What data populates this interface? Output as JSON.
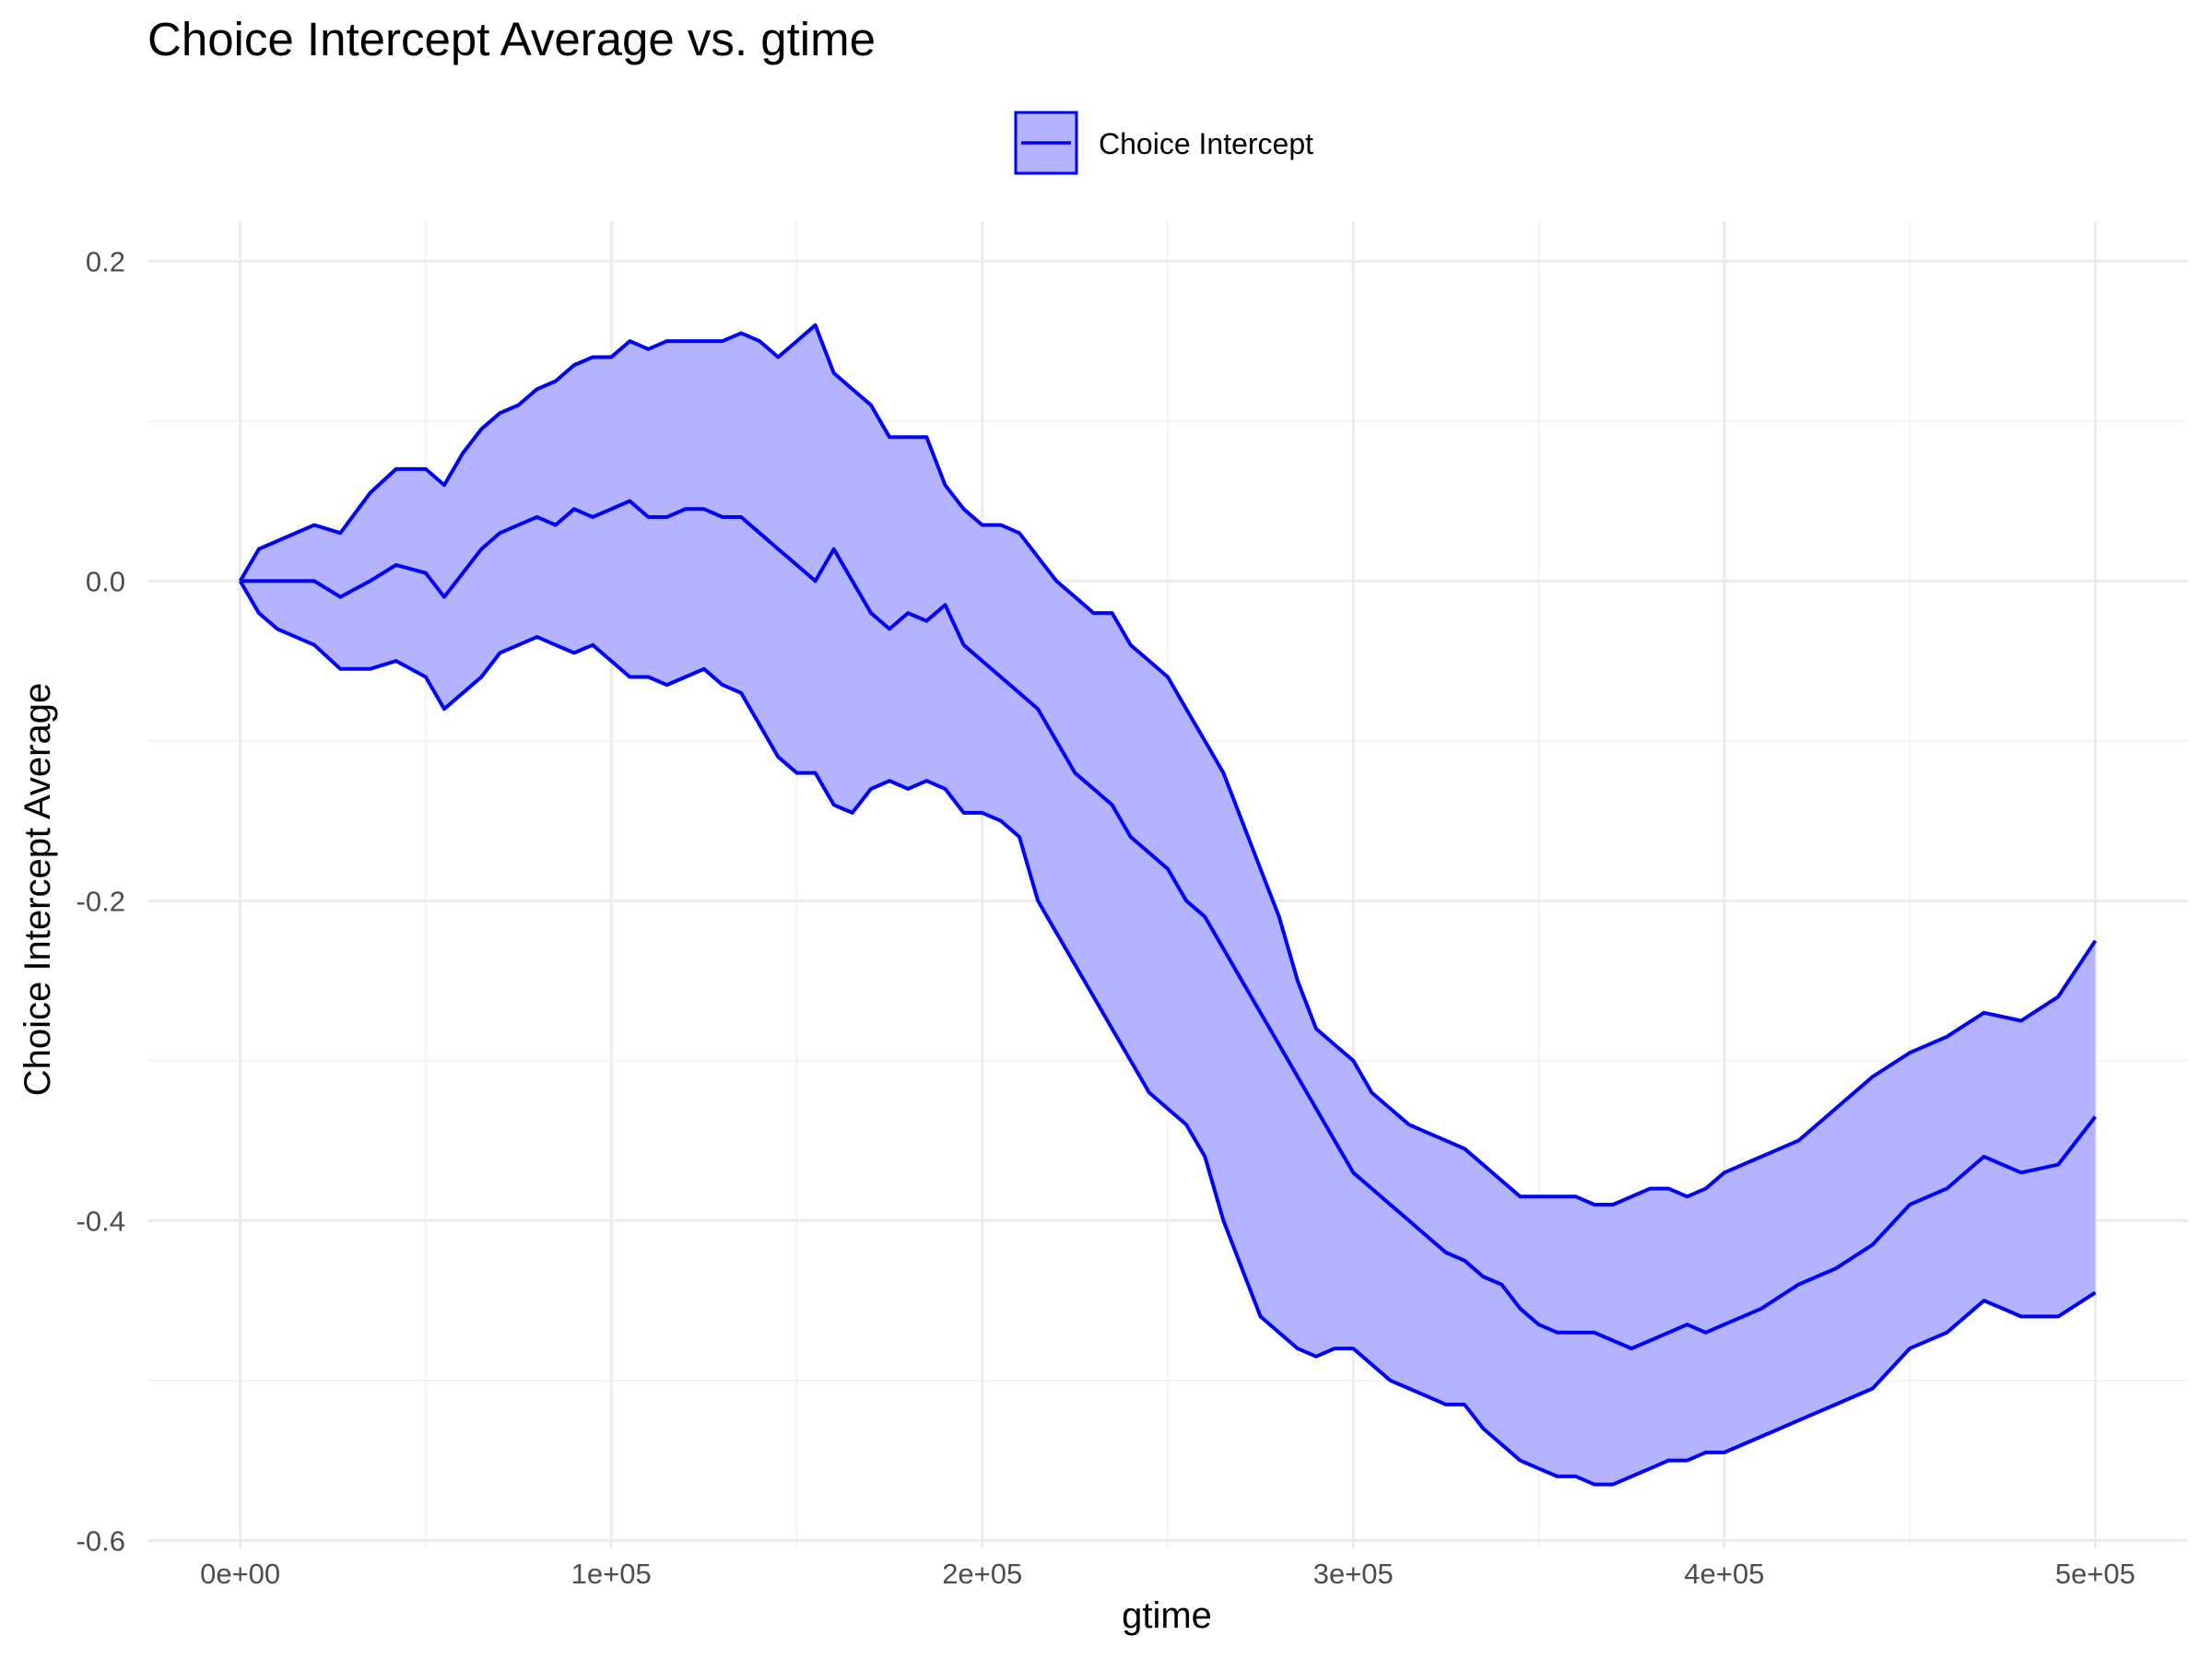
{
  "chart_data": {
    "type": "area",
    "title": "Choice Intercept Average vs. gtime",
    "xlabel": "gtime",
    "ylabel": "Choice Intercept Average",
    "xlim": [
      -25000,
      525000
    ],
    "ylim": [
      -0.605,
      0.225
    ],
    "x_ticks": [
      0,
      100000,
      200000,
      300000,
      400000,
      500000
    ],
    "x_tick_labels": [
      "0e+00",
      "1e+05",
      "2e+05",
      "3e+05",
      "4e+05",
      "5e+05"
    ],
    "y_ticks": [
      -0.6,
      -0.4,
      -0.2,
      0.0,
      0.2
    ],
    "y_tick_labels": [
      "-0.6",
      "-0.4",
      "-0.2",
      "0.0",
      "0.2"
    ],
    "grid": true,
    "legend": {
      "position": "top",
      "entries": [
        "Choice Intercept"
      ]
    },
    "colors": {
      "line": "#0000ff",
      "fill": "#b3b3ff"
    },
    "x": [
      0,
      5000,
      10000,
      20000,
      27000,
      35000,
      42000,
      50000,
      55000,
      60000,
      65000,
      70000,
      75000,
      80000,
      85000,
      90000,
      95000,
      100000,
      105000,
      110000,
      115000,
      120000,
      125000,
      130000,
      135000,
      140000,
      145000,
      150000,
      155000,
      160000,
      165000,
      170000,
      175000,
      180000,
      185000,
      190000,
      195000,
      200000,
      205000,
      210000,
      215000,
      220000,
      225000,
      230000,
      235000,
      240000,
      245000,
      250000,
      255000,
      260000,
      265000,
      270000,
      275000,
      280000,
      285000,
      290000,
      295000,
      300000,
      305000,
      310000,
      315000,
      320000,
      325000,
      330000,
      335000,
      340000,
      345000,
      350000,
      355000,
      360000,
      365000,
      370000,
      375000,
      380000,
      385000,
      390000,
      395000,
      400000,
      410000,
      420000,
      430000,
      440000,
      450000,
      460000,
      470000,
      480000,
      490000,
      500000
    ],
    "series": [
      {
        "name": "Choice Intercept",
        "values": [
          0.0,
          0.0,
          0.0,
          0.0,
          -0.01,
          0.0,
          0.01,
          0.005,
          -0.01,
          0.005,
          0.02,
          0.03,
          0.035,
          0.04,
          0.035,
          0.045,
          0.04,
          0.045,
          0.05,
          0.04,
          0.04,
          0.045,
          0.045,
          0.04,
          0.04,
          0.03,
          0.02,
          0.01,
          0.0,
          0.02,
          0.0,
          -0.02,
          -0.03,
          -0.02,
          -0.025,
          -0.015,
          -0.04,
          -0.05,
          -0.06,
          -0.07,
          -0.08,
          -0.1,
          -0.12,
          -0.13,
          -0.14,
          -0.16,
          -0.17,
          -0.18,
          -0.2,
          -0.21,
          -0.23,
          -0.25,
          -0.27,
          -0.29,
          -0.31,
          -0.33,
          -0.35,
          -0.37,
          -0.38,
          -0.39,
          -0.4,
          -0.41,
          -0.42,
          -0.425,
          -0.435,
          -0.44,
          -0.455,
          -0.465,
          -0.47,
          -0.47,
          -0.47,
          -0.475,
          -0.48,
          -0.475,
          -0.47,
          -0.465,
          -0.47,
          -0.465,
          -0.455,
          -0.44,
          -0.43,
          -0.415,
          -0.39,
          -0.38,
          -0.36,
          -0.37,
          -0.365,
          -0.335
        ]
      }
    ],
    "ribbon": {
      "upper": [
        0.0,
        0.02,
        0.025,
        0.035,
        0.03,
        0.055,
        0.07,
        0.07,
        0.06,
        0.08,
        0.095,
        0.105,
        0.11,
        0.12,
        0.125,
        0.135,
        0.14,
        0.14,
        0.15,
        0.145,
        0.15,
        0.15,
        0.15,
        0.15,
        0.155,
        0.15,
        0.14,
        0.15,
        0.16,
        0.13,
        0.12,
        0.11,
        0.09,
        0.09,
        0.09,
        0.06,
        0.045,
        0.035,
        0.035,
        0.03,
        0.015,
        0.0,
        -0.01,
        -0.02,
        -0.02,
        -0.04,
        -0.05,
        -0.06,
        -0.08,
        -0.1,
        -0.12,
        -0.15,
        -0.18,
        -0.21,
        -0.25,
        -0.28,
        -0.29,
        -0.3,
        -0.32,
        -0.33,
        -0.34,
        -0.345,
        -0.35,
        -0.355,
        -0.365,
        -0.375,
        -0.385,
        -0.385,
        -0.385,
        -0.385,
        -0.39,
        -0.39,
        -0.385,
        -0.38,
        -0.38,
        -0.385,
        -0.38,
        -0.37,
        -0.36,
        -0.35,
        -0.33,
        -0.31,
        -0.295,
        -0.285,
        -0.27,
        -0.275,
        -0.26,
        -0.225
      ],
      "lower": [
        0.0,
        -0.02,
        -0.03,
        -0.04,
        -0.055,
        -0.055,
        -0.05,
        -0.06,
        -0.08,
        -0.07,
        -0.06,
        -0.045,
        -0.04,
        -0.035,
        -0.04,
        -0.045,
        -0.04,
        -0.05,
        -0.06,
        -0.06,
        -0.065,
        -0.06,
        -0.055,
        -0.065,
        -0.07,
        -0.09,
        -0.11,
        -0.12,
        -0.12,
        -0.14,
        -0.145,
        -0.13,
        -0.125,
        -0.13,
        -0.125,
        -0.13,
        -0.145,
        -0.145,
        -0.15,
        -0.16,
        -0.2,
        -0.22,
        -0.24,
        -0.26,
        -0.28,
        -0.3,
        -0.32,
        -0.33,
        -0.34,
        -0.36,
        -0.4,
        -0.43,
        -0.46,
        -0.47,
        -0.48,
        -0.485,
        -0.48,
        -0.48,
        -0.49,
        -0.5,
        -0.505,
        -0.51,
        -0.515,
        -0.515,
        -0.53,
        -0.54,
        -0.55,
        -0.555,
        -0.56,
        -0.56,
        -0.565,
        -0.565,
        -0.56,
        -0.555,
        -0.55,
        -0.55,
        -0.545,
        -0.545,
        -0.535,
        -0.525,
        -0.515,
        -0.505,
        -0.48,
        -0.47,
        -0.45,
        -0.46,
        -0.46,
        -0.445
      ]
    }
  }
}
